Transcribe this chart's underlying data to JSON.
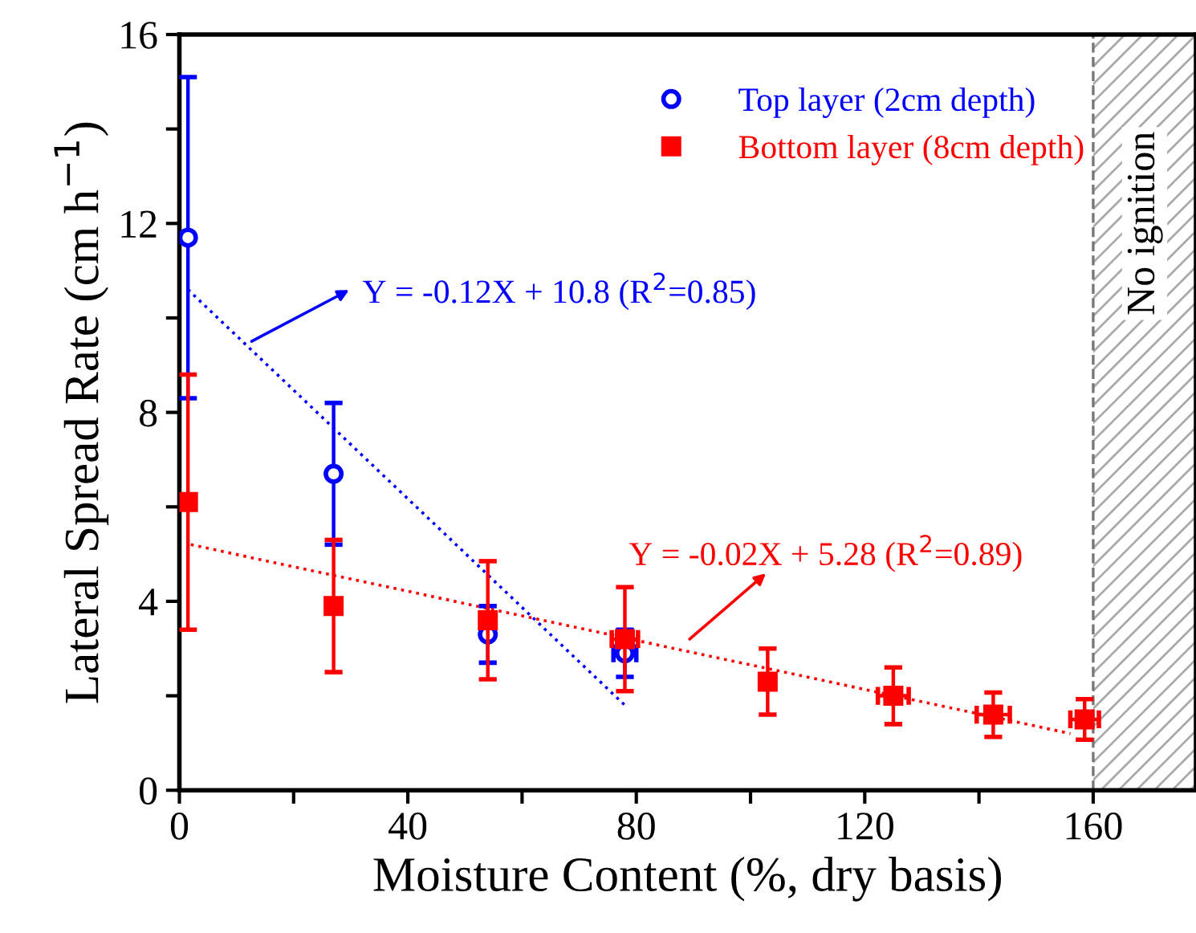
{
  "chart_data": {
    "type": "scatter",
    "xlabel": "Moisture Content (%, dry basis)",
    "ylabel": "Lateral Spread Rate (cm h$^{−1}$)",
    "xlim": [
      0,
      178
    ],
    "ylim": [
      0,
      16
    ],
    "xticks": [
      0,
      {
        "value": 20,
        "label": null
      },
      40,
      {
        "value": 60,
        "label": null
      },
      80,
      {
        "value": 100,
        "label": null
      },
      120,
      {
        "value": 140,
        "label": null
      },
      160
    ],
    "yticks": [
      0,
      {
        "value": 2,
        "label": null
      },
      4,
      {
        "value": 6,
        "label": null
      },
      8,
      {
        "value": 10,
        "label": null
      },
      12,
      {
        "value": 14,
        "label": null
      },
      16
    ],
    "series": [
      {
        "name": "Top layer (2cm depth)",
        "marker": "circle",
        "color": "#0000ff",
        "x": [
          1.5,
          27,
          54,
          78
        ],
        "values": [
          11.7,
          6.7,
          3.3,
          2.9
        ],
        "errors": [
          3.4,
          1.5,
          0.6,
          0.5
        ],
        "xerrors": [
          null,
          null,
          null,
          2
        ]
      },
      {
        "name": "Bottom layer (8cm depth)",
        "marker": "square",
        "color": "#ff0000",
        "x": [
          1.5,
          27,
          54,
          78,
          103,
          125,
          142.5,
          158.5
        ],
        "values": [
          6.1,
          3.9,
          3.6,
          3.2,
          2.3,
          2.0,
          1.6,
          1.5
        ],
        "errors": [
          2.7,
          1.4,
          1.25,
          1.1,
          0.7,
          0.6,
          0.47,
          0.43
        ],
        "xerrors": [
          null,
          null,
          null,
          2.3,
          null,
          2.7,
          2.9,
          2.5
        ]
      },
      {
        "type": "line",
        "line_style": "dotted",
        "color": "#0000ff",
        "x": [
          1.5,
          78
        ],
        "values": [
          10.6,
          1.8
        ]
      },
      {
        "type": "line",
        "line_style": "dotted",
        "color": "#ff0000",
        "x": [
          2,
          156
        ],
        "values": [
          5.2,
          1.2
        ]
      }
    ],
    "annotations": [
      "Y = -0.12X + 10.8 (R$^{2}$=0.85)",
      "Y = -0.02X + 5.28 (R$^{2}$=0.89)"
    ],
    "bands": [
      {
        "axis": "x",
        "from": 160,
        "to": 178,
        "label": "No ignition"
      }
    ],
    "ref_lines": [
      {
        "axis": "x",
        "value": 160,
        "line_style": "dashed",
        "color": "#777777"
      }
    ],
    "legend": "top right"
  }
}
